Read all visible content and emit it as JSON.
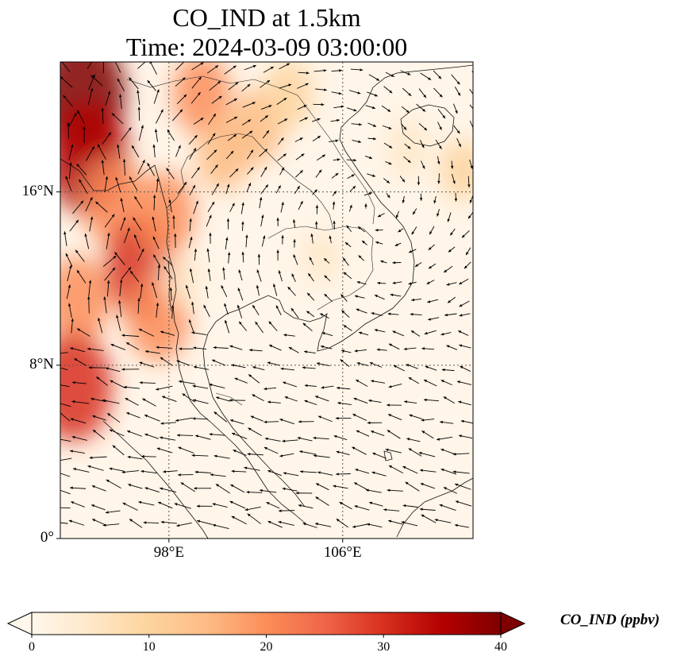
{
  "title": {
    "line1": "CO_IND at 1.5km",
    "line2": "Time: 2024-03-09 03:00:00"
  },
  "map": {
    "variable": "CO_IND",
    "level": "1.5km",
    "extent": {
      "lon_min": 93,
      "lon_max": 112,
      "lat_min": 0,
      "lat_max": 22
    },
    "lat_ticks": [
      {
        "value": 16,
        "label": "16°N"
      },
      {
        "value": 8,
        "label": "8°N"
      },
      {
        "value": 0,
        "label": "0°"
      }
    ],
    "lon_ticks": [
      {
        "value": 98,
        "label": "98°E"
      },
      {
        "value": 106,
        "label": "106°E"
      }
    ],
    "gridlines": "dotted",
    "colormap": "OrRd",
    "field_hotspots": [
      {
        "lon": 94.0,
        "lat": 20.5,
        "ppbv": 38
      },
      {
        "lon": 94.3,
        "lat": 17.5,
        "ppbv": 34
      },
      {
        "lon": 95.5,
        "lat": 15.5,
        "ppbv": 22
      },
      {
        "lon": 96.8,
        "lat": 12.5,
        "ppbv": 30
      },
      {
        "lon": 97.5,
        "lat": 10.2,
        "ppbv": 22
      },
      {
        "lon": 93.8,
        "lat": 11.0,
        "ppbv": 22
      },
      {
        "lon": 93.6,
        "lat": 7.0,
        "ppbv": 32
      },
      {
        "lon": 97.8,
        "lat": 15.0,
        "ppbv": 20
      },
      {
        "lon": 99.5,
        "lat": 20.5,
        "ppbv": 18
      },
      {
        "lon": 100.5,
        "lat": 17.8,
        "ppbv": 16
      },
      {
        "lon": 102.0,
        "lat": 19.0,
        "ppbv": 16
      },
      {
        "lon": 103.5,
        "lat": 20.5,
        "ppbv": 12
      },
      {
        "lon": 98.5,
        "lat": 12.0,
        "ppbv": 6
      },
      {
        "lon": 105.0,
        "lat": 13.0,
        "ppbv": 4
      },
      {
        "lon": 109.0,
        "lat": 18.0,
        "ppbv": 6
      },
      {
        "lon": 111.5,
        "lat": 17.0,
        "ppbv": 8
      }
    ],
    "wind_field": "cyclonic circulation over the South China Sea and Indochina"
  },
  "colorbar": {
    "title": "CO_IND (ppbv)",
    "ticks": [
      {
        "value": 0,
        "label": "0"
      },
      {
        "value": 10,
        "label": "10"
      },
      {
        "value": 20,
        "label": "20"
      },
      {
        "value": 30,
        "label": "30"
      },
      {
        "value": 40,
        "label": "40"
      }
    ],
    "min": 0,
    "max": 40,
    "colors": [
      "#fff7ec",
      "#fee8c8",
      "#fdd49e",
      "#fdbb84",
      "#fc8d59",
      "#ef6548",
      "#d7301f",
      "#b30000",
      "#7f0000"
    ],
    "extend": "both"
  }
}
